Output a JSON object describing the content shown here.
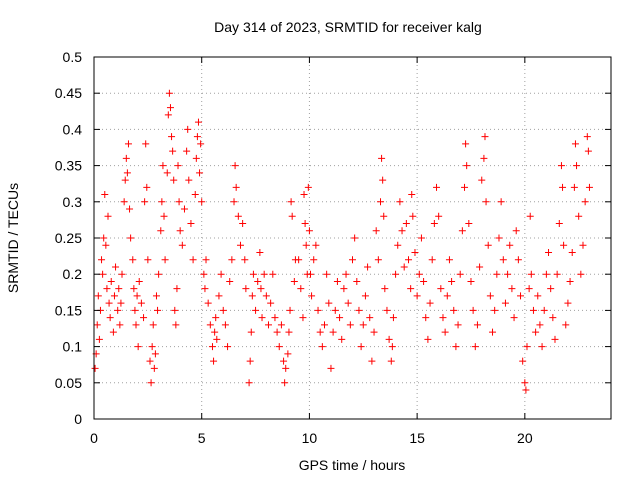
{
  "chart_data": {
    "type": "scatter",
    "title": "Day 314 of 2023, SRMTID for receiver kalg",
    "xlabel": "GPS time / hours",
    "ylabel": "SRMTID / TECUs",
    "xlim": [
      0,
      24
    ],
    "ylim": [
      0,
      0.5
    ],
    "xticks": [
      0,
      5,
      10,
      15,
      20
    ],
    "yticks": [
      0,
      0.05,
      0.1,
      0.15,
      0.2,
      0.25,
      0.3,
      0.35,
      0.4,
      0.45,
      0.5
    ],
    "grid": true,
    "marker": "plus",
    "color": "#ff0000",
    "series": [
      {
        "name": "SRMTID",
        "points": [
          [
            0.05,
            0.07
          ],
          [
            0.1,
            0.09
          ],
          [
            0.15,
            0.13
          ],
          [
            0.2,
            0.17
          ],
          [
            0.25,
            0.11
          ],
          [
            0.3,
            0.15
          ],
          [
            0.35,
            0.22
          ],
          [
            0.4,
            0.2
          ],
          [
            0.45,
            0.25
          ],
          [
            0.5,
            0.31
          ],
          [
            0.55,
            0.24
          ],
          [
            0.6,
            0.18
          ],
          [
            0.65,
            0.28
          ],
          [
            0.7,
            0.16
          ],
          [
            0.75,
            0.14
          ],
          [
            0.8,
            0.19
          ],
          [
            0.9,
            0.12
          ],
          [
            0.95,
            0.17
          ],
          [
            1.0,
            0.21
          ],
          [
            1.1,
            0.15
          ],
          [
            1.15,
            0.18
          ],
          [
            1.2,
            0.13
          ],
          [
            1.25,
            0.16
          ],
          [
            1.3,
            0.2
          ],
          [
            1.4,
            0.3
          ],
          [
            1.45,
            0.33
          ],
          [
            1.5,
            0.36
          ],
          [
            1.55,
            0.34
          ],
          [
            1.6,
            0.38
          ],
          [
            1.65,
            0.29
          ],
          [
            1.7,
            0.25
          ],
          [
            1.8,
            0.22
          ],
          [
            1.85,
            0.18
          ],
          [
            1.9,
            0.15
          ],
          [
            1.95,
            0.13
          ],
          [
            2.0,
            0.17
          ],
          [
            2.05,
            0.1
          ],
          [
            2.1,
            0.19
          ],
          [
            2.2,
            0.16
          ],
          [
            2.3,
            0.14
          ],
          [
            2.35,
            0.3
          ],
          [
            2.4,
            0.38
          ],
          [
            2.45,
            0.32
          ],
          [
            2.5,
            0.22
          ],
          [
            2.6,
            0.08
          ],
          [
            2.65,
            0.05
          ],
          [
            2.7,
            0.1
          ],
          [
            2.75,
            0.13
          ],
          [
            2.8,
            0.07
          ],
          [
            2.85,
            0.09
          ],
          [
            2.9,
            0.17
          ],
          [
            2.95,
            0.15
          ],
          [
            3.0,
            0.2
          ],
          [
            3.1,
            0.26
          ],
          [
            3.15,
            0.3
          ],
          [
            3.2,
            0.35
          ],
          [
            3.25,
            0.28
          ],
          [
            3.3,
            0.22
          ],
          [
            3.4,
            0.34
          ],
          [
            3.45,
            0.42
          ],
          [
            3.5,
            0.45
          ],
          [
            3.55,
            0.43
          ],
          [
            3.6,
            0.39
          ],
          [
            3.65,
            0.37
          ],
          [
            3.7,
            0.33
          ],
          [
            3.75,
            0.15
          ],
          [
            3.8,
            0.13
          ],
          [
            3.85,
            0.18
          ],
          [
            3.9,
            0.35
          ],
          [
            3.95,
            0.3
          ],
          [
            4.0,
            0.26
          ],
          [
            4.1,
            0.24
          ],
          [
            4.2,
            0.29
          ],
          [
            4.3,
            0.37
          ],
          [
            4.35,
            0.4
          ],
          [
            4.4,
            0.33
          ],
          [
            4.5,
            0.27
          ],
          [
            4.6,
            0.22
          ],
          [
            4.7,
            0.31
          ],
          [
            4.75,
            0.36
          ],
          [
            4.8,
            0.39
          ],
          [
            4.85,
            0.41
          ],
          [
            4.9,
            0.34
          ],
          [
            4.95,
            0.38
          ],
          [
            5.0,
            0.3
          ],
          [
            5.1,
            0.2
          ],
          [
            5.15,
            0.18
          ],
          [
            5.2,
            0.22
          ],
          [
            5.3,
            0.16
          ],
          [
            5.4,
            0.13
          ],
          [
            5.5,
            0.1
          ],
          [
            5.55,
            0.08
          ],
          [
            5.6,
            0.12
          ],
          [
            5.65,
            0.14
          ],
          [
            5.7,
            0.11
          ],
          [
            5.8,
            0.17
          ],
          [
            5.9,
            0.2
          ],
          [
            6.0,
            0.15
          ],
          [
            6.1,
            0.13
          ],
          [
            6.2,
            0.1
          ],
          [
            6.3,
            0.19
          ],
          [
            6.4,
            0.22
          ],
          [
            6.5,
            0.3
          ],
          [
            6.55,
            0.35
          ],
          [
            6.6,
            0.32
          ],
          [
            6.7,
            0.28
          ],
          [
            6.8,
            0.24
          ],
          [
            6.9,
            0.27
          ],
          [
            7.0,
            0.22
          ],
          [
            7.05,
            0.18
          ],
          [
            7.2,
            0.05
          ],
          [
            7.25,
            0.08
          ],
          [
            7.3,
            0.12
          ],
          [
            7.35,
            0.17
          ],
          [
            7.4,
            0.2
          ],
          [
            7.5,
            0.15
          ],
          [
            7.6,
            0.19
          ],
          [
            7.7,
            0.23
          ],
          [
            7.75,
            0.18
          ],
          [
            7.8,
            0.14
          ],
          [
            7.9,
            0.2
          ],
          [
            8.0,
            0.17
          ],
          [
            8.1,
            0.13
          ],
          [
            8.2,
            0.16
          ],
          [
            8.3,
            0.2
          ],
          [
            8.4,
            0.14
          ],
          [
            8.5,
            0.12
          ],
          [
            8.6,
            0.1
          ],
          [
            8.7,
            0.13
          ],
          [
            8.8,
            0.08
          ],
          [
            8.85,
            0.05
          ],
          [
            8.9,
            0.07
          ],
          [
            9.0,
            0.09
          ],
          [
            9.05,
            0.12
          ],
          [
            9.1,
            0.15
          ],
          [
            9.15,
            0.3
          ],
          [
            9.2,
            0.28
          ],
          [
            9.3,
            0.19
          ],
          [
            9.35,
            0.22
          ],
          [
            9.5,
            0.22
          ],
          [
            9.6,
            0.18
          ],
          [
            9.7,
            0.14
          ],
          [
            9.75,
            0.31
          ],
          [
            9.8,
            0.27
          ],
          [
            9.85,
            0.24
          ],
          [
            9.9,
            0.2
          ],
          [
            9.95,
            0.32
          ],
          [
            10.0,
            0.26
          ],
          [
            10.05,
            0.2
          ],
          [
            10.1,
            0.17
          ],
          [
            10.2,
            0.22
          ],
          [
            10.3,
            0.24
          ],
          [
            10.4,
            0.15
          ],
          [
            10.5,
            0.12
          ],
          [
            10.6,
            0.1
          ],
          [
            10.7,
            0.13
          ],
          [
            10.8,
            0.2
          ],
          [
            10.9,
            0.16
          ],
          [
            11.0,
            0.07
          ],
          [
            11.1,
            0.12
          ],
          [
            11.2,
            0.15
          ],
          [
            11.3,
            0.19
          ],
          [
            11.4,
            0.14
          ],
          [
            11.5,
            0.11
          ],
          [
            11.6,
            0.18
          ],
          [
            11.7,
            0.2
          ],
          [
            11.8,
            0.16
          ],
          [
            11.9,
            0.13
          ],
          [
            12.0,
            0.22
          ],
          [
            12.1,
            0.25
          ],
          [
            12.2,
            0.19
          ],
          [
            12.3,
            0.15
          ],
          [
            12.4,
            0.1
          ],
          [
            12.5,
            0.13
          ],
          [
            12.6,
            0.17
          ],
          [
            12.7,
            0.21
          ],
          [
            12.8,
            0.14
          ],
          [
            12.9,
            0.08
          ],
          [
            13.0,
            0.12
          ],
          [
            13.1,
            0.26
          ],
          [
            13.2,
            0.22
          ],
          [
            13.3,
            0.3
          ],
          [
            13.35,
            0.36
          ],
          [
            13.4,
            0.33
          ],
          [
            13.45,
            0.28
          ],
          [
            13.5,
            0.18
          ],
          [
            13.6,
            0.15
          ],
          [
            13.7,
            0.11
          ],
          [
            13.8,
            0.08
          ],
          [
            13.85,
            0.1
          ],
          [
            13.9,
            0.14
          ],
          [
            14.0,
            0.2
          ],
          [
            14.1,
            0.24
          ],
          [
            14.2,
            0.3
          ],
          [
            14.3,
            0.26
          ],
          [
            14.4,
            0.21
          ],
          [
            14.5,
            0.27
          ],
          [
            14.6,
            0.22
          ],
          [
            14.7,
            0.18
          ],
          [
            14.75,
            0.31
          ],
          [
            14.8,
            0.28
          ],
          [
            14.9,
            0.23
          ],
          [
            15.0,
            0.17
          ],
          [
            15.1,
            0.2
          ],
          [
            15.2,
            0.25
          ],
          [
            15.3,
            0.19
          ],
          [
            15.4,
            0.14
          ],
          [
            15.5,
            0.11
          ],
          [
            15.6,
            0.16
          ],
          [
            15.7,
            0.22
          ],
          [
            15.8,
            0.27
          ],
          [
            15.9,
            0.32
          ],
          [
            16.0,
            0.28
          ],
          [
            16.1,
            0.18
          ],
          [
            16.2,
            0.14
          ],
          [
            16.3,
            0.12
          ],
          [
            16.4,
            0.17
          ],
          [
            16.5,
            0.22
          ],
          [
            16.6,
            0.19
          ],
          [
            16.7,
            0.15
          ],
          [
            16.8,
            0.1
          ],
          [
            16.9,
            0.13
          ],
          [
            17.0,
            0.2
          ],
          [
            17.1,
            0.26
          ],
          [
            17.2,
            0.32
          ],
          [
            17.25,
            0.38
          ],
          [
            17.3,
            0.35
          ],
          [
            17.4,
            0.27
          ],
          [
            17.5,
            0.19
          ],
          [
            17.6,
            0.15
          ],
          [
            17.7,
            0.1
          ],
          [
            17.8,
            0.13
          ],
          [
            17.9,
            0.21
          ],
          [
            18.0,
            0.33
          ],
          [
            18.1,
            0.36
          ],
          [
            18.15,
            0.39
          ],
          [
            18.2,
            0.3
          ],
          [
            18.3,
            0.24
          ],
          [
            18.4,
            0.17
          ],
          [
            18.5,
            0.12
          ],
          [
            18.6,
            0.15
          ],
          [
            18.7,
            0.2
          ],
          [
            18.8,
            0.25
          ],
          [
            18.9,
            0.3
          ],
          [
            19.0,
            0.22
          ],
          [
            19.1,
            0.16
          ],
          [
            19.2,
            0.2
          ],
          [
            19.3,
            0.24
          ],
          [
            19.4,
            0.18
          ],
          [
            19.5,
            0.14
          ],
          [
            19.6,
            0.26
          ],
          [
            19.7,
            0.22
          ],
          [
            19.8,
            0.17
          ],
          [
            19.9,
            0.08
          ],
          [
            20.0,
            0.05
          ],
          [
            20.05,
            0.04
          ],
          [
            20.1,
            0.1
          ],
          [
            20.2,
            0.18
          ],
          [
            20.25,
            0.28
          ],
          [
            20.3,
            0.2
          ],
          [
            20.4,
            0.15
          ],
          [
            20.5,
            0.12
          ],
          [
            20.6,
            0.17
          ],
          [
            20.7,
            0.13
          ],
          [
            20.8,
            0.1
          ],
          [
            20.9,
            0.15
          ],
          [
            21.0,
            0.2
          ],
          [
            21.1,
            0.23
          ],
          [
            21.2,
            0.18
          ],
          [
            21.3,
            0.14
          ],
          [
            21.4,
            0.11
          ],
          [
            21.5,
            0.2
          ],
          [
            21.6,
            0.27
          ],
          [
            21.7,
            0.35
          ],
          [
            21.75,
            0.32
          ],
          [
            21.8,
            0.24
          ],
          [
            21.9,
            0.13
          ],
          [
            22.0,
            0.16
          ],
          [
            22.1,
            0.19
          ],
          [
            22.2,
            0.23
          ],
          [
            22.3,
            0.32
          ],
          [
            22.35,
            0.38
          ],
          [
            22.4,
            0.35
          ],
          [
            22.5,
            0.28
          ],
          [
            22.6,
            0.2
          ],
          [
            22.7,
            0.24
          ],
          [
            22.8,
            0.3
          ],
          [
            22.9,
            0.39
          ],
          [
            22.95,
            0.37
          ],
          [
            23.0,
            0.32
          ]
        ]
      }
    ]
  }
}
